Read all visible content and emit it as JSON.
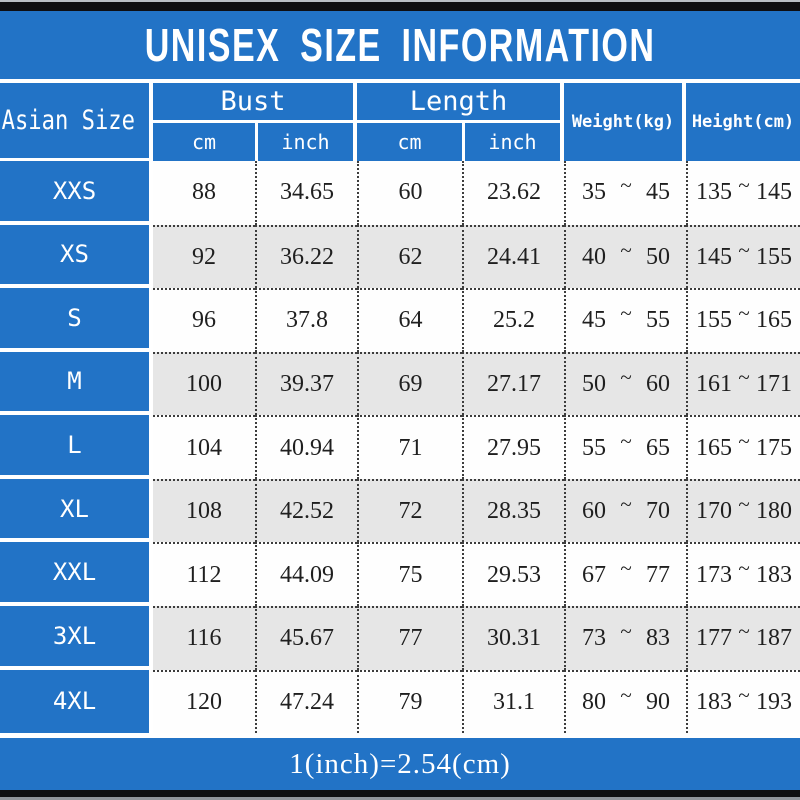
{
  "title": "UNISEX SIZE INFORMATION",
  "footer_note": "1(inch)=2.54(cm)",
  "colors": {
    "accent_blue": "#2273c6",
    "row_alt_gray": "#e6e6e6",
    "bar_black": "#0e0e12",
    "text_dark": "#1f1f1f",
    "text_white": "#ffffff"
  },
  "table": {
    "corner_header": "Asian Size",
    "groups": [
      {
        "label": "Bust",
        "sub": [
          "cm",
          "inch"
        ]
      },
      {
        "label": "Length",
        "sub": [
          "cm",
          "inch"
        ]
      }
    ],
    "spanning_headers": [
      "Weight(kg)",
      "Height(cm)"
    ],
    "tilde_symbol": "~",
    "rows": [
      {
        "size": "XXS",
        "bust_cm": "88",
        "bust_inch": "34.65",
        "length_cm": "60",
        "length_inch": "23.62",
        "weight_min": "35",
        "weight_max": "45",
        "height_min": "135",
        "height_max": "145"
      },
      {
        "size": "XS",
        "bust_cm": "92",
        "bust_inch": "36.22",
        "length_cm": "62",
        "length_inch": "24.41",
        "weight_min": "40",
        "weight_max": "50",
        "height_min": "145",
        "height_max": "155"
      },
      {
        "size": "S",
        "bust_cm": "96",
        "bust_inch": "37.8",
        "length_cm": "64",
        "length_inch": "25.2",
        "weight_min": "45",
        "weight_max": "55",
        "height_min": "155",
        "height_max": "165"
      },
      {
        "size": "M",
        "bust_cm": "100",
        "bust_inch": "39.37",
        "length_cm": "69",
        "length_inch": "27.17",
        "weight_min": "50",
        "weight_max": "60",
        "height_min": "161",
        "height_max": "171"
      },
      {
        "size": "L",
        "bust_cm": "104",
        "bust_inch": "40.94",
        "length_cm": "71",
        "length_inch": "27.95",
        "weight_min": "55",
        "weight_max": "65",
        "height_min": "165",
        "height_max": "175"
      },
      {
        "size": "XL",
        "bust_cm": "108",
        "bust_inch": "42.52",
        "length_cm": "72",
        "length_inch": "28.35",
        "weight_min": "60",
        "weight_max": "70",
        "height_min": "170",
        "height_max": "180"
      },
      {
        "size": "XXL",
        "bust_cm": "112",
        "bust_inch": "44.09",
        "length_cm": "75",
        "length_inch": "29.53",
        "weight_min": "67",
        "weight_max": "77",
        "height_min": "173",
        "height_max": "183"
      },
      {
        "size": "3XL",
        "bust_cm": "116",
        "bust_inch": "45.67",
        "length_cm": "77",
        "length_inch": "30.31",
        "weight_min": "73",
        "weight_max": "83",
        "height_min": "177",
        "height_max": "187"
      },
      {
        "size": "4XL",
        "bust_cm": "120",
        "bust_inch": "47.24",
        "length_cm": "79",
        "length_inch": "31.1",
        "weight_min": "80",
        "weight_max": "90",
        "height_min": "183",
        "height_max": "193"
      }
    ]
  }
}
